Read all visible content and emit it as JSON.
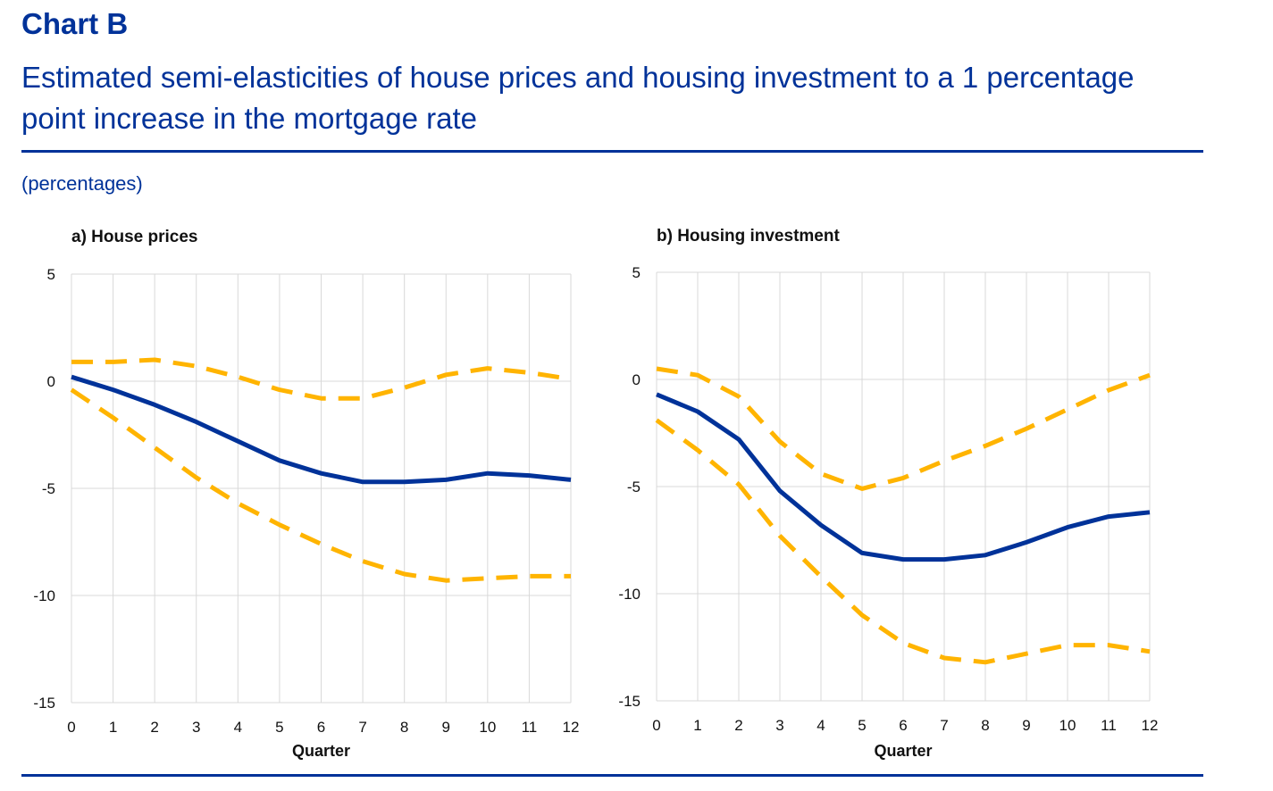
{
  "header": {
    "label": "Chart B",
    "title": "Estimated semi-elasticities of house prices and housing investment to a 1 percentage point increase in the mortgage rate",
    "subtitle": "(percentages)"
  },
  "colors": {
    "estimate": "#003299",
    "band": "#FFB400",
    "grid": "#D9D9D9",
    "frame": "#003299"
  },
  "chart_data": [
    {
      "type": "line",
      "title": "a) House prices",
      "xlabel": "Quarter",
      "ylabel": "",
      "x": [
        0,
        1,
        2,
        3,
        4,
        5,
        6,
        7,
        8,
        9,
        10,
        11,
        12
      ],
      "xlim": [
        0,
        12
      ],
      "ylim": [
        -15,
        5
      ],
      "yticks": [
        5,
        0,
        -5,
        -10,
        -15
      ],
      "grid": true,
      "series": [
        {
          "role": "upper",
          "style": "dashed",
          "color": "#FFB400",
          "values": [
            0.9,
            0.9,
            1.0,
            0.7,
            0.2,
            -0.4,
            -0.8,
            -0.8,
            -0.3,
            0.3,
            0.6,
            0.4,
            0.1
          ]
        },
        {
          "role": "estimate",
          "style": "solid",
          "color": "#003299",
          "values": [
            0.2,
            -0.4,
            -1.1,
            -1.9,
            -2.8,
            -3.7,
            -4.3,
            -4.7,
            -4.7,
            -4.6,
            -4.3,
            -4.4,
            -4.6
          ]
        },
        {
          "role": "lower",
          "style": "dashed",
          "color": "#FFB400",
          "values": [
            -0.4,
            -1.7,
            -3.1,
            -4.5,
            -5.7,
            -6.7,
            -7.6,
            -8.4,
            -9.0,
            -9.3,
            -9.2,
            -9.1,
            -9.1
          ]
        }
      ]
    },
    {
      "type": "line",
      "title": "b) Housing investment",
      "xlabel": "Quarter",
      "ylabel": "",
      "x": [
        0,
        1,
        2,
        3,
        4,
        5,
        6,
        7,
        8,
        9,
        10,
        11,
        12
      ],
      "xlim": [
        0,
        12
      ],
      "ylim": [
        -15,
        5
      ],
      "yticks": [
        5,
        0,
        -5,
        -10,
        -15
      ],
      "grid": true,
      "series": [
        {
          "role": "upper",
          "style": "dashed",
          "color": "#FFB400",
          "values": [
            0.5,
            0.2,
            -0.8,
            -2.9,
            -4.4,
            -5.1,
            -4.6,
            -3.8,
            -3.1,
            -2.3,
            -1.4,
            -0.5,
            0.2
          ]
        },
        {
          "role": "estimate",
          "style": "solid",
          "color": "#003299",
          "values": [
            -0.7,
            -1.5,
            -2.8,
            -5.2,
            -6.8,
            -8.1,
            -8.4,
            -8.4,
            -8.2,
            -7.6,
            -6.9,
            -6.4,
            -6.2
          ]
        },
        {
          "role": "lower",
          "style": "dashed",
          "color": "#FFB400",
          "values": [
            -1.9,
            -3.3,
            -4.9,
            -7.3,
            -9.2,
            -11.0,
            -12.3,
            -13.0,
            -13.2,
            -12.8,
            -12.4,
            -12.4,
            -12.7
          ]
        }
      ]
    }
  ]
}
